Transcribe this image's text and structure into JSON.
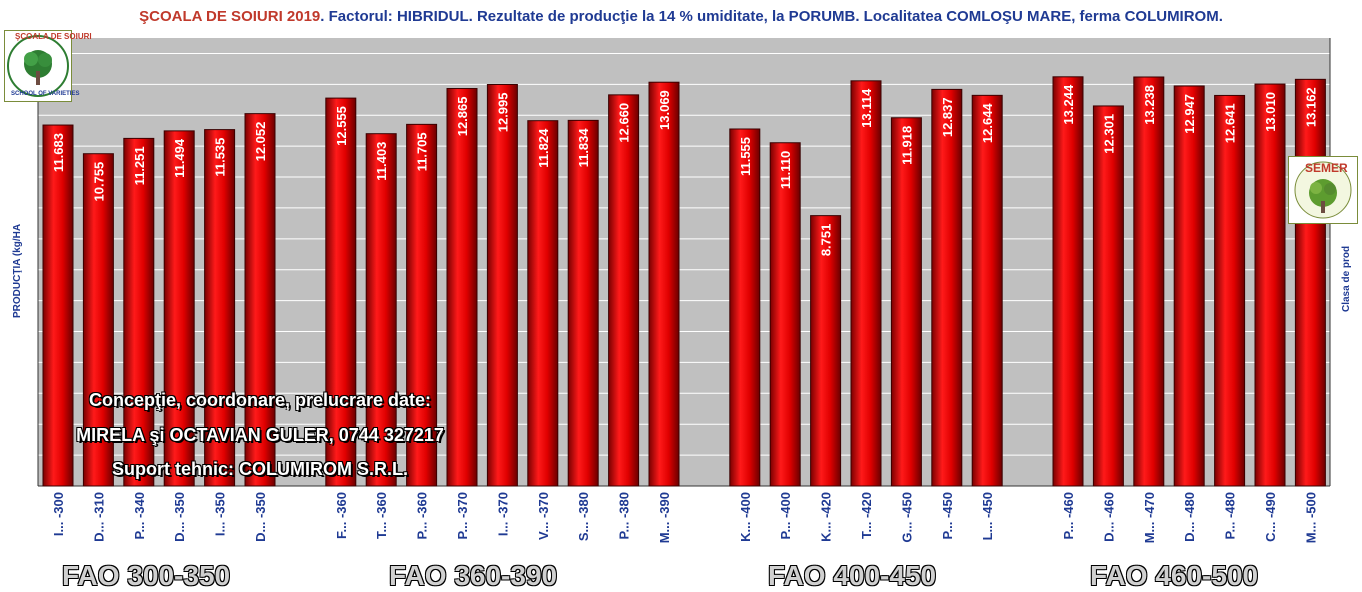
{
  "title": {
    "school": "ŞCOALA DE SOIURI 2019",
    "rest": ". Factorul: HIBRIDUL. Rezultate de producţie la 14 % umiditate, la PORUMB. Localitatea COMLOŞU MARE, ferma COLUMIROM."
  },
  "logos": {
    "left_top_text": "ŞCOALA DE SOIURI",
    "left_bottom_text": "SCHOOL OF VARIETIES",
    "right_text": "SEMER"
  },
  "credits": {
    "line1": "Concepţie, coordonare, prelucrare date:",
    "line2": "MIRELA şi OCTAVIAN GULER, 0744 327217",
    "line3": "Suport tehnic: COLUMIROM S.R.L."
  },
  "group_labels": [
    "FAO 300-350",
    "FAO 360-390",
    "FAO 400-450",
    "FAO 460-500"
  ],
  "colors": {
    "plot_bg": "#c0c0c0",
    "bar": "#e00000",
    "bar_dark": "#8b0000",
    "axis_text": "#1f3a93"
  },
  "chart_data": {
    "type": "bar",
    "title": "ŞCOALA DE SOIURI 2019. Factorul: HIBRIDUL. Rezultate de producţie la 14 % umiditate, la PORUMB. Localitatea COMLOŞU MARE, ferma COLUMIROM.",
    "ylabel": "PRODUCŢIA (kg/HA",
    "y2label": "Clasa de prod",
    "ylim": [
      0,
      14500
    ],
    "grid": true,
    "groups": [
      {
        "name": "FAO 300-350",
        "categories": [
          "I... -300",
          "D... -310",
          "P... -340",
          "D... -350",
          "I... -350",
          "D... -350"
        ],
        "values": [
          11683,
          10755,
          11251,
          11494,
          11535,
          12052
        ],
        "labels": [
          "11.683",
          "10.755",
          "11.251",
          "11.494",
          "11.535",
          "12.052"
        ]
      },
      {
        "name": "FAO 360-390",
        "categories": [
          "F... -360",
          "T... -360",
          "P... -360",
          "P... -370",
          "I... -370",
          "V... -370",
          "S... -380",
          "P... -380",
          "M... -390"
        ],
        "values": [
          12555,
          11403,
          11705,
          12865,
          12995,
          11824,
          11834,
          12660,
          13069
        ],
        "labels": [
          "12.555",
          "11.403",
          "11.705",
          "12.865",
          "12.995",
          "11.824",
          "11.834",
          "12.660",
          "13.069"
        ]
      },
      {
        "name": "FAO 400-450",
        "categories": [
          "K... -400",
          "P... -400",
          "K... -420",
          "T... -420",
          "G... -450",
          "P... -450",
          "L... -450"
        ],
        "values": [
          11555,
          11110,
          8751,
          13114,
          11918,
          12837,
          12644
        ],
        "labels": [
          "11.555",
          "11.110",
          "8.751",
          "13.114",
          "11.918",
          "12.837",
          "12.644"
        ]
      },
      {
        "name": "FAO 460-500",
        "categories": [
          "P... -460",
          "D... -460",
          "M... -470",
          "D... -480",
          "P... -480",
          "C... -490",
          "M... -500"
        ],
        "values": [
          13244,
          12301,
          13238,
          12947,
          12641,
          13010,
          13162
        ],
        "labels": [
          "13.244",
          "12.301",
          "13.238",
          "12.947",
          "12.641",
          "13.010",
          "13.162"
        ]
      }
    ]
  }
}
